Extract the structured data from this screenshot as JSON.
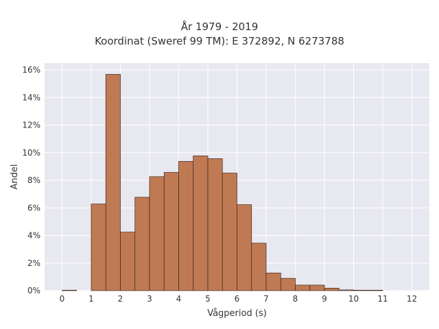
{
  "chart_data": {
    "type": "bar",
    "title": [
      "År 1979 - 2019",
      "Koordinat (Sweref 99 TM): E 372892, N 6273788"
    ],
    "xlabel": "Vågperiod (s)",
    "ylabel": "Andel",
    "xlim": [
      -0.6,
      12.6
    ],
    "ylim": [
      0,
      0.165
    ],
    "x_ticks": [
      0,
      1,
      2,
      3,
      4,
      5,
      6,
      7,
      8,
      9,
      10,
      11,
      12
    ],
    "y_ticks": [
      0,
      0.02,
      0.04,
      0.06,
      0.08,
      0.1,
      0.12,
      0.14,
      0.16
    ],
    "y_tick_labels": [
      "0%",
      "2%",
      "4%",
      "6%",
      "8%",
      "10%",
      "12%",
      "14%",
      "16%"
    ],
    "bin_width": 0.5,
    "bins": [
      {
        "start": 0.0,
        "value": 0.0003
      },
      {
        "start": 1.0,
        "value": 0.0628
      },
      {
        "start": 1.5,
        "value": 0.1568
      },
      {
        "start": 2.0,
        "value": 0.0424
      },
      {
        "start": 2.5,
        "value": 0.0677
      },
      {
        "start": 3.0,
        "value": 0.0826
      },
      {
        "start": 3.5,
        "value": 0.0857
      },
      {
        "start": 4.0,
        "value": 0.0937
      },
      {
        "start": 4.5,
        "value": 0.0977
      },
      {
        "start": 5.0,
        "value": 0.0957
      },
      {
        "start": 5.5,
        "value": 0.0852
      },
      {
        "start": 6.0,
        "value": 0.0623
      },
      {
        "start": 6.5,
        "value": 0.0344
      },
      {
        "start": 7.0,
        "value": 0.0128
      },
      {
        "start": 7.5,
        "value": 0.0089
      },
      {
        "start": 8.0,
        "value": 0.004
      },
      {
        "start": 8.5,
        "value": 0.004
      },
      {
        "start": 9.0,
        "value": 0.0018
      },
      {
        "start": 9.5,
        "value": 0.0005
      },
      {
        "start": 10.0,
        "value": 0.0003
      },
      {
        "start": 10.5,
        "value": 0.0003
      }
    ],
    "grid": true,
    "colors": {
      "bar_fill": "#c07a53",
      "bar_stroke": "#3a2618",
      "plot_background": "#e8e8f0",
      "grid": "#ffffff"
    }
  }
}
